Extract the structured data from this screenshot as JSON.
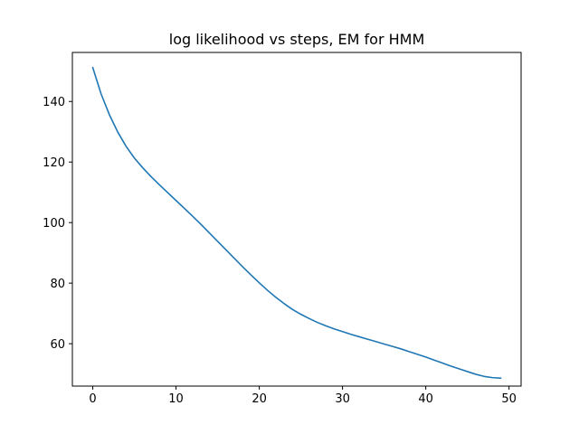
{
  "chart_data": {
    "type": "line",
    "title": "log likelihood vs steps, EM for HMM",
    "xlabel": "",
    "ylabel": "",
    "xlim": [
      -2.45,
      51.45
    ],
    "ylim": [
      46.0,
      156.2
    ],
    "xticks": [
      0,
      10,
      20,
      30,
      40,
      50
    ],
    "yticks": [
      60,
      80,
      100,
      120,
      140
    ],
    "grid": false,
    "legend": "none",
    "series": [
      {
        "color": "#1f77b4",
        "x": [
          0,
          1,
          2,
          3,
          4,
          5,
          6,
          7,
          8,
          9,
          10,
          11,
          12,
          13,
          14,
          15,
          16,
          17,
          18,
          19,
          20,
          21,
          22,
          23,
          24,
          25,
          26,
          27,
          28,
          29,
          30,
          31,
          32,
          33,
          34,
          35,
          36,
          37,
          38,
          39,
          40,
          41,
          42,
          43,
          44,
          45,
          46,
          47,
          48,
          49
        ],
        "y": [
          151.2,
          142.5,
          135.6,
          129.9,
          125.2,
          121.3,
          118.1,
          115.2,
          112.5,
          109.9,
          107.3,
          104.7,
          102.1,
          99.4,
          96.6,
          93.8,
          91.0,
          88.2,
          85.4,
          82.7,
          80.1,
          77.6,
          75.3,
          73.2,
          71.3,
          69.7,
          68.3,
          67.0,
          65.9,
          64.9,
          64.0,
          63.1,
          62.3,
          61.5,
          60.7,
          59.9,
          59.1,
          58.3,
          57.4,
          56.5,
          55.6,
          54.6,
          53.6,
          52.6,
          51.7,
          50.8,
          49.9,
          49.2,
          48.8,
          48.6
        ]
      }
    ]
  }
}
